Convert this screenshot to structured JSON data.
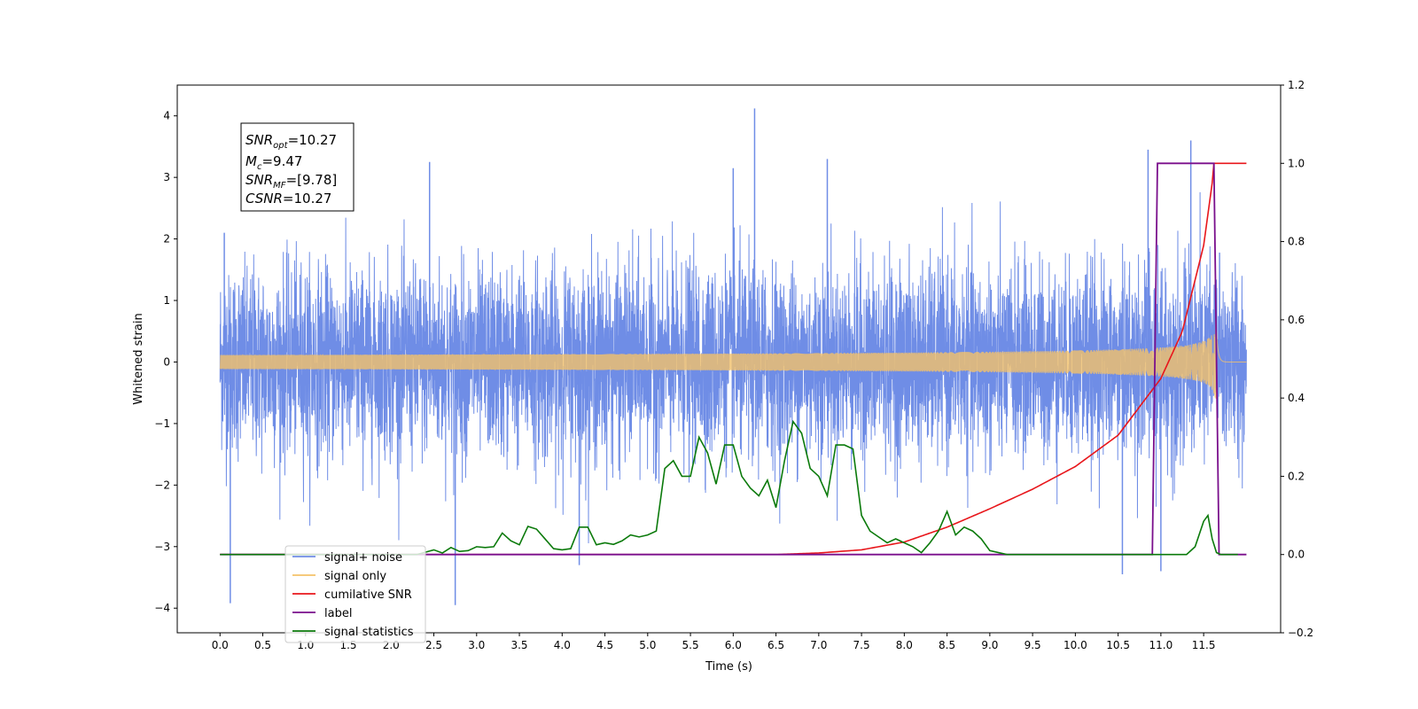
{
  "chart_data": {
    "type": "line",
    "xlabel": "Time (s)",
    "ylabel": "Whitened strain",
    "xlim": [
      -0.5,
      12.4
    ],
    "ylim": [
      -4.4,
      4.5
    ],
    "y2lim": [
      -0.2,
      1.2
    ],
    "x_ticks": [
      0.0,
      0.5,
      1.0,
      1.5,
      2.0,
      2.5,
      3.0,
      3.5,
      4.0,
      4.5,
      5.0,
      5.5,
      6.0,
      6.5,
      7.0,
      7.5,
      8.0,
      8.5,
      9.0,
      9.5,
      10.0,
      10.5,
      11.0,
      11.5
    ],
    "x_tick_labels": [
      "0.0",
      "0.5",
      "1.0",
      "1.5",
      "2.0",
      "2.5",
      "3.0",
      "3.5",
      "4.0",
      "4.5",
      "5.0",
      "5.5",
      "6.0",
      "6.5",
      "7.0",
      "7.5",
      "8.0",
      "8.5",
      "9.0",
      "9.5",
      "10.0",
      "10.5",
      "11.0",
      "11.5"
    ],
    "y_ticks": [
      -4,
      -3,
      -2,
      -1,
      0,
      1,
      2,
      3,
      4
    ],
    "y_tick_labels": [
      "−4",
      "−3",
      "−2",
      "−1",
      "0",
      "1",
      "2",
      "3",
      "4"
    ],
    "y2_ticks": [
      -0.2,
      0.0,
      0.2,
      0.4,
      0.6,
      0.8,
      1.0,
      1.2
    ],
    "y2_tick_labels": [
      "−0.2",
      "0.0",
      "0.2",
      "0.4",
      "0.6",
      "0.8",
      "1.0",
      "1.2"
    ],
    "grid": false,
    "legend_position": "bottom-left",
    "stats_box": {
      "snr_opt": {
        "base": "SNR",
        "sub": "opt",
        "value": "=10.27"
      },
      "mc": {
        "base": "M",
        "sub": "c",
        "value": "=9.47"
      },
      "snr_mf": {
        "base": "SNR",
        "sub": "MF",
        "value": "=[9.78]"
      },
      "csnr": {
        "base": "CSNR",
        "value": "=10.27"
      }
    },
    "series": [
      {
        "name": "signal+ noise",
        "color": "#6f8de6",
        "axis": "left",
        "x": [
          0.0,
          12.0
        ],
        "noise_sigma": 0.75,
        "extremes": [
          [
            0.05,
            2.1
          ],
          [
            0.12,
            -3.92
          ],
          [
            2.45,
            3.25
          ],
          [
            2.75,
            -3.95
          ],
          [
            4.2,
            -3.3
          ],
          [
            6.25,
            4.12
          ],
          [
            6.0,
            3.15
          ],
          [
            7.1,
            3.3
          ],
          [
            10.85,
            3.45
          ],
          [
            11.35,
            3.6
          ],
          [
            10.55,
            -3.45
          ],
          [
            11.0,
            -3.4
          ]
        ]
      },
      {
        "name": "signal only",
        "color": "#f4c26a",
        "axis": "left",
        "t_merge": 11.65,
        "t_end": 12.0,
        "peak_amplitude": 0.85
      },
      {
        "name": "cumilative SNR",
        "color": "#e8161b",
        "axis": "right",
        "x": [
          0.0,
          6.5,
          7.0,
          7.5,
          8.0,
          8.5,
          9.0,
          9.5,
          10.0,
          10.5,
          11.0,
          11.25,
          11.5,
          11.6,
          11.62,
          11.65,
          12.0
        ],
        "y": [
          0.0,
          0.0,
          0.004,
          0.012,
          0.032,
          0.07,
          0.117,
          0.167,
          0.225,
          0.305,
          0.45,
          0.57,
          0.79,
          0.95,
          1.0,
          1.0,
          1.0
        ]
      },
      {
        "name": "label",
        "color": "#7a0f8c",
        "axis": "right",
        "x": [
          0.0,
          10.9,
          10.96,
          11.62,
          11.68,
          12.0
        ],
        "y": [
          0.0,
          0.0,
          1.0,
          1.0,
          0.0,
          0.0
        ]
      },
      {
        "name": "signal statistics",
        "color": "#0b7a0b",
        "axis": "right",
        "x": [
          0.0,
          2.3,
          2.5,
          2.6,
          2.7,
          2.8,
          2.9,
          3.0,
          3.1,
          3.2,
          3.3,
          3.4,
          3.5,
          3.6,
          3.7,
          3.8,
          3.9,
          4.0,
          4.1,
          4.2,
          4.3,
          4.4,
          4.5,
          4.6,
          4.7,
          4.8,
          4.9,
          5.0,
          5.1,
          5.2,
          5.3,
          5.4,
          5.5,
          5.6,
          5.7,
          5.8,
          5.9,
          6.0,
          6.1,
          6.2,
          6.3,
          6.4,
          6.5,
          6.6,
          6.7,
          6.8,
          6.9,
          7.0,
          7.1,
          7.2,
          7.3,
          7.4,
          7.5,
          7.6,
          7.7,
          7.8,
          7.9,
          8.0,
          8.1,
          8.2,
          8.3,
          8.4,
          8.5,
          8.6,
          8.7,
          8.8,
          8.9,
          9.0,
          9.2,
          11.3,
          11.4,
          11.5,
          11.55,
          11.6,
          11.65,
          11.7,
          11.8,
          11.9
        ],
        "y": [
          0.0,
          0.0,
          0.012,
          0.004,
          0.018,
          0.008,
          0.01,
          0.02,
          0.018,
          0.02,
          0.055,
          0.035,
          0.025,
          0.072,
          0.065,
          0.04,
          0.015,
          0.012,
          0.015,
          0.07,
          0.07,
          0.025,
          0.03,
          0.026,
          0.035,
          0.05,
          0.045,
          0.05,
          0.06,
          0.22,
          0.24,
          0.2,
          0.2,
          0.3,
          0.26,
          0.18,
          0.28,
          0.28,
          0.2,
          0.17,
          0.15,
          0.19,
          0.12,
          0.24,
          0.34,
          0.31,
          0.22,
          0.2,
          0.15,
          0.28,
          0.28,
          0.27,
          0.1,
          0.06,
          0.045,
          0.03,
          0.04,
          0.03,
          0.02,
          0.005,
          0.03,
          0.06,
          0.11,
          0.05,
          0.07,
          0.06,
          0.04,
          0.01,
          0.0,
          0.0,
          0.02,
          0.085,
          0.1,
          0.04,
          0.005,
          0.0,
          0.0,
          0.0
        ]
      }
    ]
  }
}
